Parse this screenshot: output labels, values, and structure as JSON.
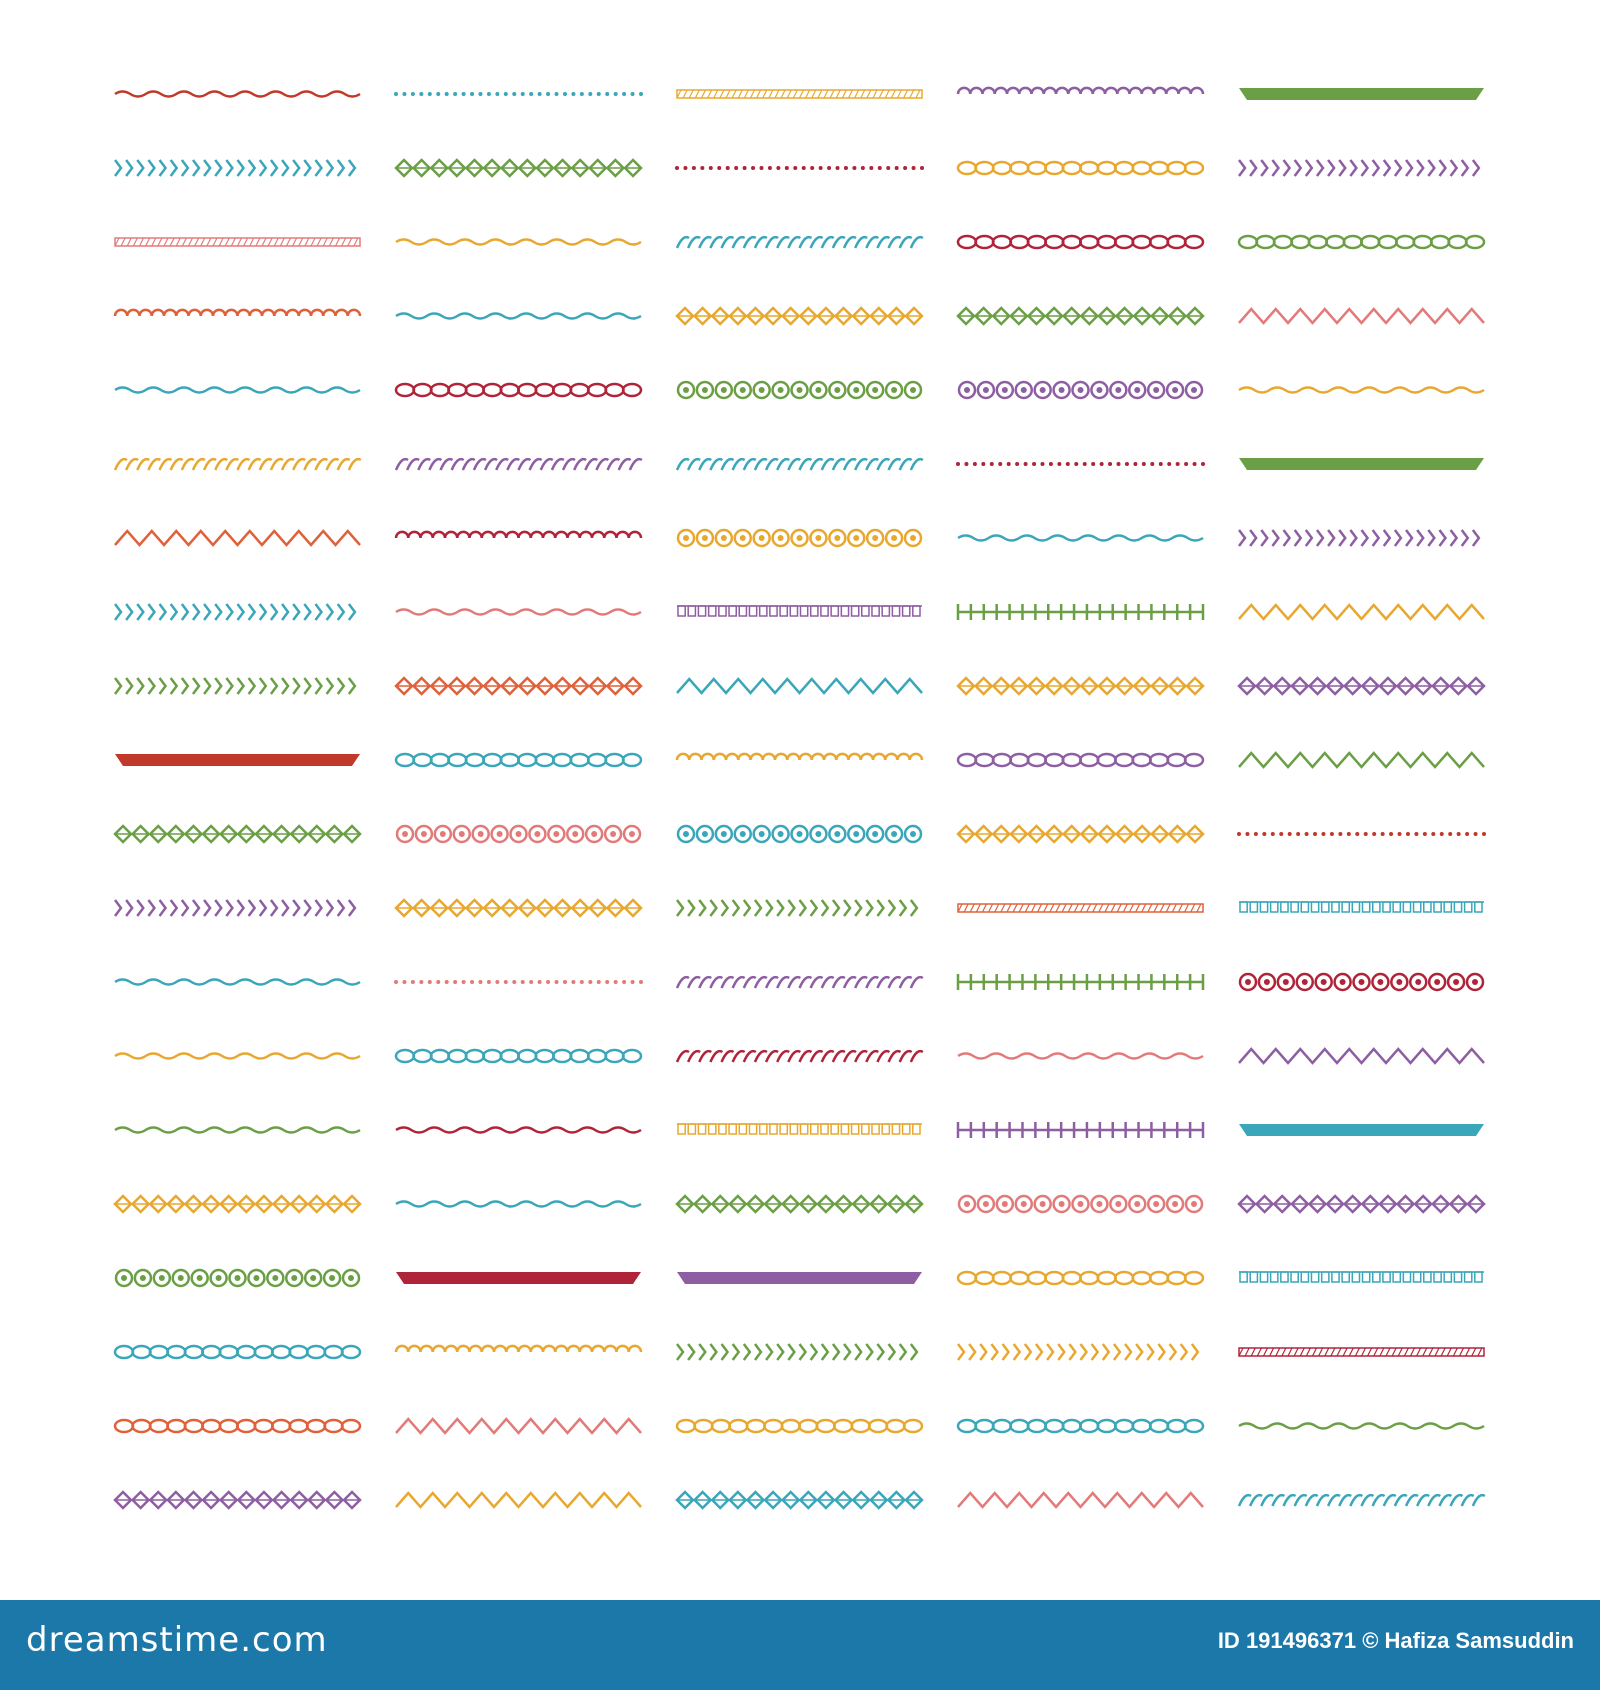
{
  "footer": {
    "brand": "dreamstime.com",
    "id_label": "ID",
    "id_number": "191496371",
    "author": "© Hafiza Samsuddin"
  },
  "colors": {
    "footer_background": "#1c78a8",
    "palette": [
      "#c0392b",
      "#3aa6b9",
      "#e8a830",
      "#8e5ea2",
      "#6a9f45",
      "#e0603a",
      "#e37a7a",
      "#b0243a"
    ]
  },
  "patterns": {
    "columns": 5,
    "rows": 20,
    "grid": [
      [
        [
          "wave",
          "#c0392b"
        ],
        [
          "dots",
          "#3aa6b9"
        ],
        [
          "hatch",
          "#e8a830"
        ],
        [
          "scallop",
          "#8e5ea2"
        ],
        [
          "band",
          "#6a9f45"
        ]
      ],
      [
        [
          "chevron",
          "#3aa6b9"
        ],
        [
          "rhombus",
          "#6a9f45"
        ],
        [
          "dots",
          "#b0243a"
        ],
        [
          "chain",
          "#e8a830"
        ],
        [
          "chevron",
          "#8e5ea2"
        ]
      ],
      [
        [
          "hatch",
          "#e37a7a"
        ],
        [
          "wave",
          "#e8a830"
        ],
        [
          "rope",
          "#3aa6b9"
        ],
        [
          "chain",
          "#b0243a"
        ],
        [
          "chain",
          "#6a9f45"
        ]
      ],
      [
        [
          "scallop",
          "#e0603a"
        ],
        [
          "wave",
          "#3aa6b9"
        ],
        [
          "rhombus",
          "#e8a830"
        ],
        [
          "rhombus",
          "#6a9f45"
        ],
        [
          "zigzag",
          "#e37a7a"
        ]
      ],
      [
        [
          "wave",
          "#3aa6b9"
        ],
        [
          "chain",
          "#b0243a"
        ],
        [
          "circle",
          "#6a9f45"
        ],
        [
          "circle",
          "#8e5ea2"
        ],
        [
          "wave",
          "#e8a830"
        ]
      ],
      [
        [
          "rope",
          "#e8a830"
        ],
        [
          "rope",
          "#8e5ea2"
        ],
        [
          "rope",
          "#3aa6b9"
        ],
        [
          "dots",
          "#b0243a"
        ],
        [
          "band",
          "#6a9f45"
        ]
      ],
      [
        [
          "zigzag",
          "#e0603a"
        ],
        [
          "scallop",
          "#b0243a"
        ],
        [
          "circle",
          "#e8a830"
        ],
        [
          "wave",
          "#3aa6b9"
        ],
        [
          "chevron",
          "#8e5ea2"
        ]
      ],
      [
        [
          "chevron",
          "#3aa6b9"
        ],
        [
          "wave",
          "#e37a7a"
        ],
        [
          "square",
          "#8e5ea2"
        ],
        [
          "ladder",
          "#6a9f45"
        ],
        [
          "zigzag",
          "#e8a830"
        ]
      ],
      [
        [
          "chevron",
          "#6a9f45"
        ],
        [
          "rhombus",
          "#e0603a"
        ],
        [
          "zigzag",
          "#3aa6b9"
        ],
        [
          "rhombus",
          "#e8a830"
        ],
        [
          "rhombus",
          "#8e5ea2"
        ]
      ],
      [
        [
          "band",
          "#c0392b"
        ],
        [
          "chain",
          "#3aa6b9"
        ],
        [
          "scallop",
          "#e8a830"
        ],
        [
          "chain",
          "#8e5ea2"
        ],
        [
          "zigzag",
          "#6a9f45"
        ]
      ],
      [
        [
          "rhombus",
          "#6a9f45"
        ],
        [
          "circle",
          "#e37a7a"
        ],
        [
          "circle",
          "#3aa6b9"
        ],
        [
          "rhombus",
          "#e8a830"
        ],
        [
          "dots",
          "#c0392b"
        ]
      ],
      [
        [
          "chevron",
          "#8e5ea2"
        ],
        [
          "rhombus",
          "#e8a830"
        ],
        [
          "chevron",
          "#6a9f45"
        ],
        [
          "hatch",
          "#e0603a"
        ],
        [
          "square",
          "#3aa6b9"
        ]
      ],
      [
        [
          "wave",
          "#3aa6b9"
        ],
        [
          "dots",
          "#e37a7a"
        ],
        [
          "rope",
          "#8e5ea2"
        ],
        [
          "ladder",
          "#6a9f45"
        ],
        [
          "circle",
          "#b0243a"
        ]
      ],
      [
        [
          "wave",
          "#e8a830"
        ],
        [
          "chain",
          "#3aa6b9"
        ],
        [
          "rope",
          "#b0243a"
        ],
        [
          "wave",
          "#e37a7a"
        ],
        [
          "zigzag",
          "#8e5ea2"
        ]
      ],
      [
        [
          "wave",
          "#6a9f45"
        ],
        [
          "wave",
          "#b0243a"
        ],
        [
          "square",
          "#e8a830"
        ],
        [
          "ladder",
          "#8e5ea2"
        ],
        [
          "band",
          "#3aa6b9"
        ]
      ],
      [
        [
          "rhombus",
          "#e8a830"
        ],
        [
          "wave",
          "#3aa6b9"
        ],
        [
          "rhombus",
          "#6a9f45"
        ],
        [
          "circle",
          "#e37a7a"
        ],
        [
          "rhombus",
          "#8e5ea2"
        ]
      ],
      [
        [
          "circle",
          "#6a9f45"
        ],
        [
          "band",
          "#b0243a"
        ],
        [
          "band",
          "#8e5ea2"
        ],
        [
          "chain",
          "#e8a830"
        ],
        [
          "square",
          "#3aa6b9"
        ]
      ],
      [
        [
          "chain",
          "#3aa6b9"
        ],
        [
          "scallop",
          "#e8a830"
        ],
        [
          "chevron",
          "#6a9f45"
        ],
        [
          "chevron",
          "#e8a830"
        ],
        [
          "hatch",
          "#b0243a"
        ]
      ],
      [
        [
          "chain",
          "#e0603a"
        ],
        [
          "zigzag",
          "#e37a7a"
        ],
        [
          "chain",
          "#e8a830"
        ],
        [
          "chain",
          "#3aa6b9"
        ],
        [
          "wave",
          "#6a9f45"
        ]
      ],
      [
        [
          "rhombus",
          "#8e5ea2"
        ],
        [
          "zigzag",
          "#e8a830"
        ],
        [
          "rhombus",
          "#3aa6b9"
        ],
        [
          "zigzag",
          "#e37a7a"
        ],
        [
          "rope",
          "#3aa6b9"
        ]
      ]
    ]
  }
}
